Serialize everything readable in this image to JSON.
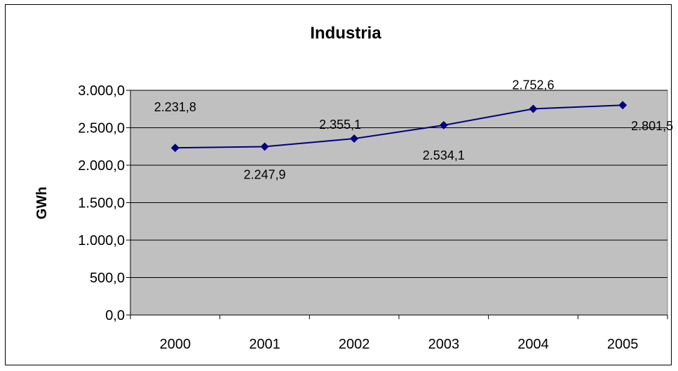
{
  "chart_data": {
    "type": "line",
    "title": "Industria",
    "xlabel": "",
    "ylabel": "GWh",
    "categories": [
      "2000",
      "2001",
      "2002",
      "2003",
      "2004",
      "2005"
    ],
    "series": [
      {
        "values": [
          2231.8,
          2247.9,
          2355.1,
          2534.1,
          2752.6,
          2801.5
        ],
        "data_labels": [
          "2.231,8",
          "2.247,9",
          "2.355,1",
          "2.534,1",
          "2.752,6",
          "2.801,5"
        ],
        "color": "#000080"
      }
    ],
    "ylim": [
      0,
      3000
    ],
    "yticks": [
      0,
      500,
      1000,
      1500,
      2000,
      2500,
      3000
    ],
    "ytick_labels": [
      "0,0",
      "500,0",
      "1.000,0",
      "1.500,0",
      "2.000,0",
      "2.500,0",
      "3.000,0"
    ],
    "grid": true,
    "plot_background": "#c0c0c0",
    "legend": "none"
  }
}
